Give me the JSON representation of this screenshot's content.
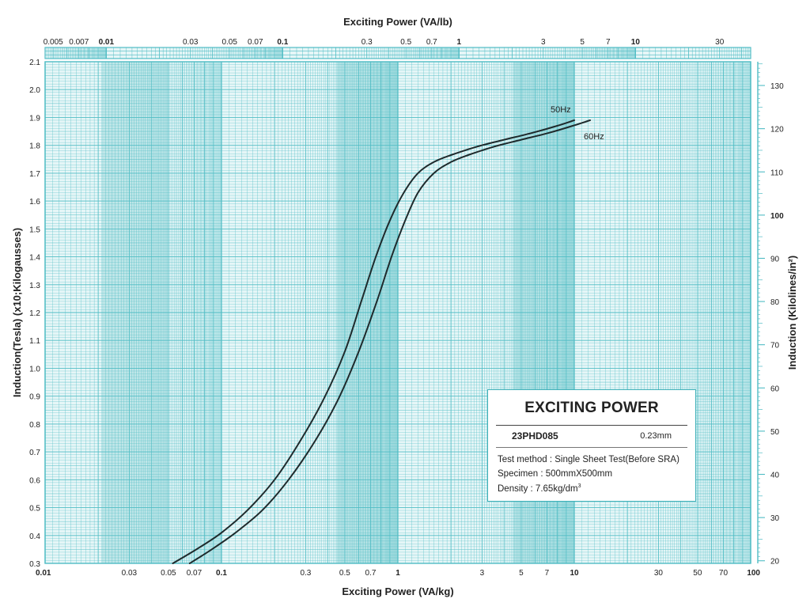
{
  "chart_data": {
    "type": "line",
    "title": "",
    "xlabel": "Exciting Power (VA/kg)",
    "x_scale": "log",
    "xlim": [
      0.01,
      100
    ],
    "x_ticks": [
      "0.01",
      "0.03",
      "0.05",
      "0.07",
      "0.1",
      "0.3",
      "0.5",
      "0.7",
      "1",
      "3",
      "5",
      "7",
      "10",
      "30",
      "50",
      "70",
      "100"
    ],
    "x_ticks_bold": [
      "0.01",
      "0.1",
      "1",
      "10",
      "100"
    ],
    "ylabel": "Induction(Tesla) (x10;Kilogausses)",
    "ylim": [
      0.3,
      2.1
    ],
    "y_ticks": [
      "0.3",
      "0.4",
      "0.5",
      "0.6",
      "0.7",
      "0.8",
      "0.9",
      "1.0",
      "1.1",
      "1.2",
      "1.3",
      "1.4",
      "1.5",
      "1.6",
      "1.7",
      "1.8",
      "1.9",
      "2.0",
      "2.1"
    ],
    "top_axis": {
      "label": "Exciting Power (VA/lb)",
      "scale": "log",
      "lim": [
        0.0045,
        45
      ],
      "ticks": [
        "0.005",
        "0.007",
        "0.01",
        "0.03",
        "0.05",
        "0.07",
        "0.1",
        "0.3",
        "0.5",
        "0.7",
        "1",
        "3",
        "5",
        "7",
        "10",
        "30"
      ],
      "ticks_bold": [
        "0.01",
        "0.1",
        "1",
        "10"
      ]
    },
    "right_axis": {
      "label": "Induction (Kilolines/in²)",
      "lim": [
        19.4,
        135.5
      ],
      "ticks": [
        "20",
        "30",
        "40",
        "50",
        "60",
        "70",
        "80",
        "90",
        "100",
        "110",
        "120",
        "130"
      ],
      "ticks_bold": [
        "100"
      ]
    },
    "grid": true,
    "legend": "inline-labels",
    "series": [
      {
        "name": "50Hz",
        "x": [
          0.053,
          0.072,
          0.1,
          0.14,
          0.2,
          0.28,
          0.38,
          0.5,
          0.62,
          0.75,
          0.9,
          1.08,
          1.3,
          1.6,
          2.0,
          2.8,
          4.0,
          5.8,
          8.0,
          10.0
        ],
        "y": [
          0.3,
          0.35,
          0.41,
          0.49,
          0.6,
          0.74,
          0.89,
          1.06,
          1.24,
          1.4,
          1.53,
          1.63,
          1.7,
          1.74,
          1.765,
          1.795,
          1.82,
          1.845,
          1.87,
          1.89
        ]
      },
      {
        "name": "60Hz",
        "x": [
          0.066,
          0.088,
          0.12,
          0.17,
          0.24,
          0.34,
          0.46,
          0.6,
          0.76,
          0.92,
          1.1,
          1.3,
          1.6,
          2.0,
          2.5,
          3.5,
          5.0,
          7.2,
          9.8,
          12.3
        ],
        "y": [
          0.3,
          0.35,
          0.41,
          0.49,
          0.6,
          0.74,
          0.89,
          1.06,
          1.24,
          1.4,
          1.53,
          1.63,
          1.7,
          1.74,
          1.765,
          1.795,
          1.82,
          1.845,
          1.87,
          1.89
        ]
      }
    ]
  },
  "colors": {
    "grid": "#4fbcc4",
    "grid_band": "#9fd9dd",
    "grid_bg": "#e6f6f7",
    "curve": "#1e2a2c",
    "box_border": "#3fb0b8"
  },
  "info_box": {
    "title": "EXCITING POWER",
    "grade": "23PHD085",
    "thickness": "0.23mm",
    "test_method": "Test method : Single Sheet Test(Before SRA)",
    "specimen": "Specimen : 500mmX500mm",
    "density_prefix": "Density : 7.65kg/dm",
    "density_exp": "3"
  }
}
